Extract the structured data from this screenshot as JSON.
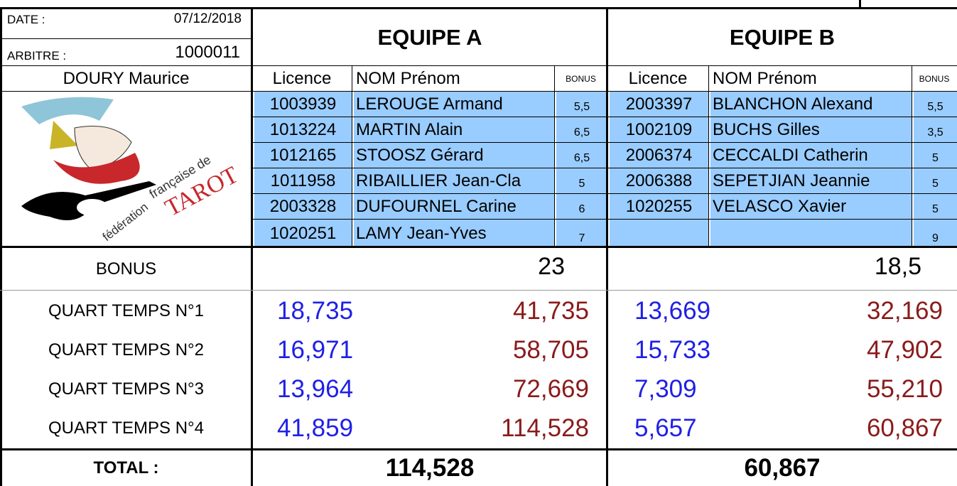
{
  "header": {
    "date_label": "DATE :",
    "date": "07/12/2018",
    "arbitre_label": "ARBITRE :",
    "arbitre_id": "1000011",
    "arbitre_name": "DOURY Maurice"
  },
  "logo": {
    "texts": [
      "française de",
      "TAROT",
      "fédération"
    ]
  },
  "column_headers": [
    "Licence",
    "NOM Prénom",
    "BONUS"
  ],
  "row_labels": {
    "bonus": "BONUS",
    "quarters": [
      "QUART TEMPS N°1",
      "QUART TEMPS N°2",
      "QUART TEMPS N°3",
      "QUART TEMPS N°4"
    ],
    "total": "TOTAL :"
  },
  "teams": [
    {
      "name": "EQUIPE A",
      "players": [
        [
          "1003939",
          "LEROUGE Armand",
          "5,5"
        ],
        [
          "1013224",
          "MARTIN Alain",
          "6,5"
        ],
        [
          "1012165",
          "STOOSZ Gérard",
          "6,5"
        ],
        [
          "1011958",
          "RIBAILLIER Jean-Cla",
          "5"
        ],
        [
          "2003328",
          "DUFOURNEL Carine",
          "6"
        ],
        [
          "1020251",
          "LAMY Jean-Yves",
          "7"
        ]
      ],
      "bonus_total": "23",
      "quarters": [
        [
          "18,735",
          "41,735"
        ],
        [
          "16,971",
          "58,705"
        ],
        [
          "13,964",
          "72,669"
        ],
        [
          "41,859",
          "114,528"
        ]
      ],
      "total": "114,528"
    },
    {
      "name": "EQUIPE B",
      "players": [
        [
          "2003397",
          "BLANCHON Alexand",
          "5,5"
        ],
        [
          "1002109",
          "BUCHS Gilles",
          "3,5"
        ],
        [
          "2006374",
          "CECCALDI  Catherin",
          "5"
        ],
        [
          "2006388",
          "SEPETJIAN Jeannie",
          "5"
        ],
        [
          "1020255",
          "VELASCO Xavier",
          "5"
        ],
        [
          null,
          null,
          "9"
        ]
      ],
      "bonus_total": "18,5",
      "quarters": [
        [
          "13,669",
          "32,169"
        ],
        [
          "15,733",
          "47,902"
        ],
        [
          "7,309",
          "55,210"
        ],
        [
          "5,657",
          "60,867"
        ]
      ],
      "total": "60,867"
    }
  ]
}
